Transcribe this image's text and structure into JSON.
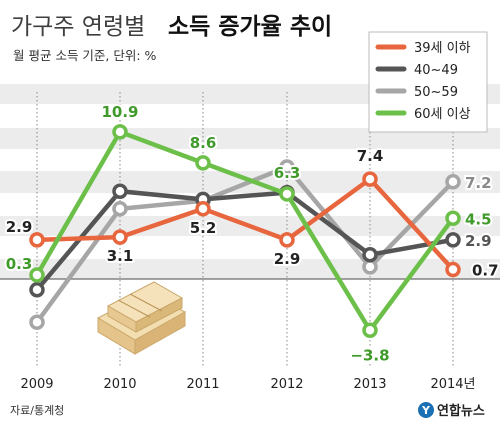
{
  "header": {
    "title_light": "가구주 연령별",
    "title_bold": "소득 증가율 추이",
    "subtitle": "월 평균 소득 기준, 단위: %"
  },
  "footer": {
    "source": "자료/통계청",
    "logo_text": "연합뉴스",
    "logo_icon": "yonhap-logo-icon"
  },
  "chart_data": {
    "type": "line",
    "title": "가구주 연령별 소득 증가율 추이",
    "subtitle": "월 평균 소득 기준, 단위: %",
    "categories": [
      "2009",
      "2010",
      "2011",
      "2012",
      "2013",
      "2014년"
    ],
    "ylim": [
      -5,
      13
    ],
    "grid": false,
    "legend_position": "top-right",
    "series": [
      {
        "name": "39세 이하",
        "color": "#e8663d",
        "values": [
          2.9,
          3.1,
          5.2,
          2.9,
          7.4,
          0.7
        ],
        "labels": [
          "2.9",
          "3.1",
          "5.2",
          "2.9",
          "7.4",
          "0.7"
        ]
      },
      {
        "name": "40~49",
        "color": "#555555",
        "values": [
          -0.8,
          6.5,
          5.9,
          6.4,
          1.8,
          2.9
        ],
        "labels": [
          "",
          "",
          "",
          "",
          "",
          "2.9"
        ]
      },
      {
        "name": "50~59",
        "color": "#a6a6a6",
        "values": [
          -3.2,
          5.2,
          5.8,
          8.3,
          0.9,
          7.2
        ],
        "labels": [
          "",
          "",
          "",
          "",
          "",
          "7.2"
        ]
      },
      {
        "name": "60세 이상",
        "color": "#6cc04a",
        "values": [
          0.3,
          10.9,
          8.6,
          6.3,
          -3.8,
          4.5
        ],
        "labels": [
          "0.3",
          "10.9",
          "8.6",
          "6.3",
          "−3.8",
          "4.5"
        ]
      }
    ]
  }
}
